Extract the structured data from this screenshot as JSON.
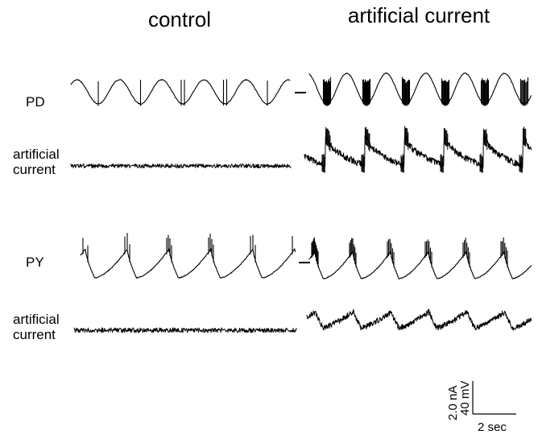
{
  "chart_data": {
    "type": "line",
    "panels": {
      "control": "control",
      "artificial": "artificial current"
    },
    "rows": [
      {
        "key": "pd",
        "label": "PD",
        "lines": [
          "PD"
        ],
        "kind": "voltage",
        "cell": "PD"
      },
      {
        "key": "pd_current",
        "label": "artificial current",
        "lines": [
          "artificial",
          "current"
        ],
        "kind": "current",
        "cell": "PD"
      },
      {
        "key": "py",
        "label": "PY",
        "lines": [
          "PY"
        ],
        "kind": "voltage",
        "cell": "PY"
      },
      {
        "key": "py_current",
        "label": "artificial current",
        "lines": [
          "artificial",
          "current"
        ],
        "kind": "current",
        "cell": "PY"
      }
    ],
    "bursts": {
      "pd_control": {
        "cycles": 5,
        "spikes_per_burst": [
          1,
          1,
          2,
          2,
          1
        ]
      },
      "pd_artificial": {
        "cycles": 6,
        "spikes_per_burst": [
          10,
          10,
          9,
          9,
          9,
          8
        ]
      },
      "py_control": {
        "cycles": 6,
        "spikes_per_burst": [
          2,
          3,
          4,
          4,
          3,
          2
        ]
      },
      "py_artificial": {
        "cycles": 6,
        "spikes_per_burst": [
          8,
          7,
          6,
          6,
          6,
          6
        ]
      }
    },
    "cycle_period_sec": 2.0,
    "scale_bar": {
      "vertical": [
        "2.0 nA",
        "40 mV"
      ],
      "horizontal": "2 sec",
      "vertical_values": {
        "current_nA": 2.0,
        "voltage_mV": 40
      },
      "horizontal_value_sec": 2
    }
  }
}
